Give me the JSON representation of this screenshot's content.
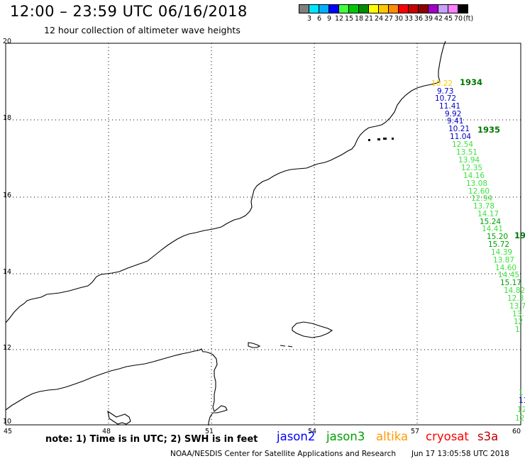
{
  "header": {
    "title": "12:00 – 23:59 UTC 06/16/2018",
    "subtitle": "12 hour collection of altimeter wave heights"
  },
  "colorbar": {
    "colors": [
      "#7f7f7f",
      "#00e5ff",
      "#00b0ff",
      "#0000ff",
      "#40ff40",
      "#00c800",
      "#008c00",
      "#ffff00",
      "#ffc800",
      "#ff8c00",
      "#ff0000",
      "#c80000",
      "#8c0000",
      "#a000c8",
      "#c8a0ff",
      "#ff80ff",
      "#000000"
    ],
    "labels": [
      "3",
      "6",
      "9",
      "12",
      "15",
      "18",
      "21",
      "24",
      "27",
      "30",
      "33",
      "36",
      "39",
      "42",
      "45",
      "70",
      "(ft)"
    ]
  },
  "axes": {
    "x_ticks": [
      "45",
      "48",
      "51",
      "54",
      "57",
      "60"
    ],
    "y_ticks": [
      "20",
      "18",
      "16",
      "14",
      "12",
      "10"
    ]
  },
  "time_labels": [
    {
      "text": "1934",
      "color": "#007800"
    },
    {
      "text": "1935",
      "color": "#007800"
    },
    {
      "text": "19",
      "color": "#007800"
    }
  ],
  "wave_readings": [
    {
      "text": "10.22",
      "color": "#ffc800"
    },
    {
      "text": "9.73",
      "color": "#0000c8"
    },
    {
      "text": "10.72",
      "color": "#0000c8"
    },
    {
      "text": "11.41",
      "color": "#0000c8"
    },
    {
      "text": "9.92",
      "color": "#0000c8"
    },
    {
      "text": "9.41",
      "color": "#0000c8"
    },
    {
      "text": "10.21",
      "color": "#0000c8"
    },
    {
      "text": "11.04",
      "color": "#0000c8"
    },
    {
      "text": "12.54",
      "color": "#40e040"
    },
    {
      "text": "13.51",
      "color": "#40e040"
    },
    {
      "text": "13.94",
      "color": "#40e040"
    },
    {
      "text": "12.35",
      "color": "#40e040"
    },
    {
      "text": "14.16",
      "color": "#40e040"
    },
    {
      "text": "13.08",
      "color": "#40e040"
    },
    {
      "text": "12.60",
      "color": "#40e040"
    },
    {
      "text": "12.94",
      "color": "#40e040"
    },
    {
      "text": "13.78",
      "color": "#40e040"
    },
    {
      "text": "14.17",
      "color": "#40e040"
    },
    {
      "text": "15.24",
      "color": "#00a000"
    },
    {
      "text": "14.41",
      "color": "#40e040"
    },
    {
      "text": "15.20",
      "color": "#00a000"
    },
    {
      "text": "15.72",
      "color": "#00a000"
    },
    {
      "text": "14.39",
      "color": "#40e040"
    },
    {
      "text": "13.87",
      "color": "#40e040"
    },
    {
      "text": "14.60",
      "color": "#40e040"
    },
    {
      "text": "14.45",
      "color": "#40e040"
    },
    {
      "text": "15.17",
      "color": "#00a000"
    },
    {
      "text": "14.82",
      "color": "#40e040"
    },
    {
      "text": "12.3",
      "color": "#40e040"
    },
    {
      "text": "13.7",
      "color": "#40e040"
    },
    {
      "text": "13.",
      "color": "#40e040"
    },
    {
      "text": "12",
      "color": "#40e040"
    },
    {
      "text": "1",
      "color": "#40e040"
    },
    {
      "text": "1",
      "color": "#40e040"
    },
    {
      "text": "11",
      "color": "#0000c8"
    },
    {
      "text": "12",
      "color": "#40e040"
    },
    {
      "text": "12.",
      "color": "#40e040"
    }
  ],
  "footer": {
    "note": "note: 1) Time is in UTC; 2) SWH is in feet",
    "legend": [
      {
        "text": "jason2",
        "color": "#0000ff"
      },
      {
        "text": "jason3",
        "color": "#00a000"
      },
      {
        "text": "altika",
        "color": "#ff9a00"
      },
      {
        "text": "cryosat",
        "color": "#ff0000"
      },
      {
        "text": "s3a",
        "color": "#c00000"
      }
    ],
    "credit": "NOAA/NESDIS Center for Satellite Applications and Research",
    "stamp": "Jun 17 13:05:58 UTC 2018"
  }
}
